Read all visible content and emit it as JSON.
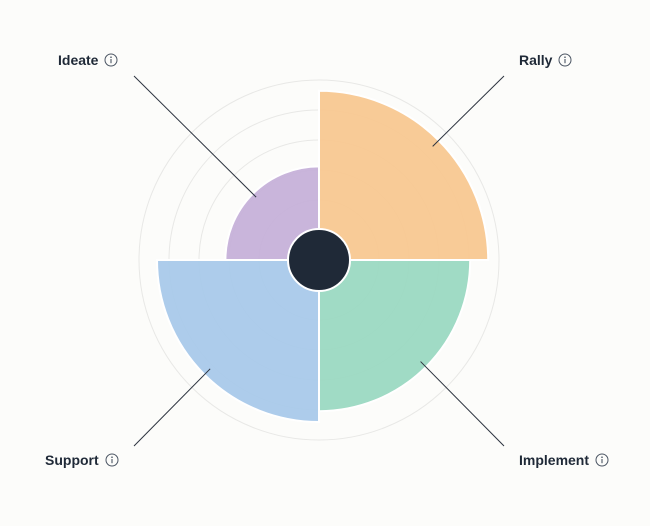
{
  "chart_data": {
    "type": "polar-area",
    "max": 5,
    "rings": 6,
    "segments": [
      {
        "name": "Rally",
        "value": 4.7,
        "color": "#f8c891"
      },
      {
        "name": "Implement",
        "value": 4.2,
        "color": "#9bd9c2"
      },
      {
        "name": "Support",
        "value": 4.5,
        "color": "#a9c9ea"
      },
      {
        "name": "Ideate",
        "value": 2.6,
        "color": "#c6b1d9"
      }
    ],
    "center_color": "#1f2937",
    "grid_color": "#e8e8e6"
  },
  "labels": {
    "rally": "Rally",
    "implement": "Implement",
    "support": "Support",
    "ideate": "Ideate"
  },
  "icons": {
    "label_icon": "info-icon"
  }
}
